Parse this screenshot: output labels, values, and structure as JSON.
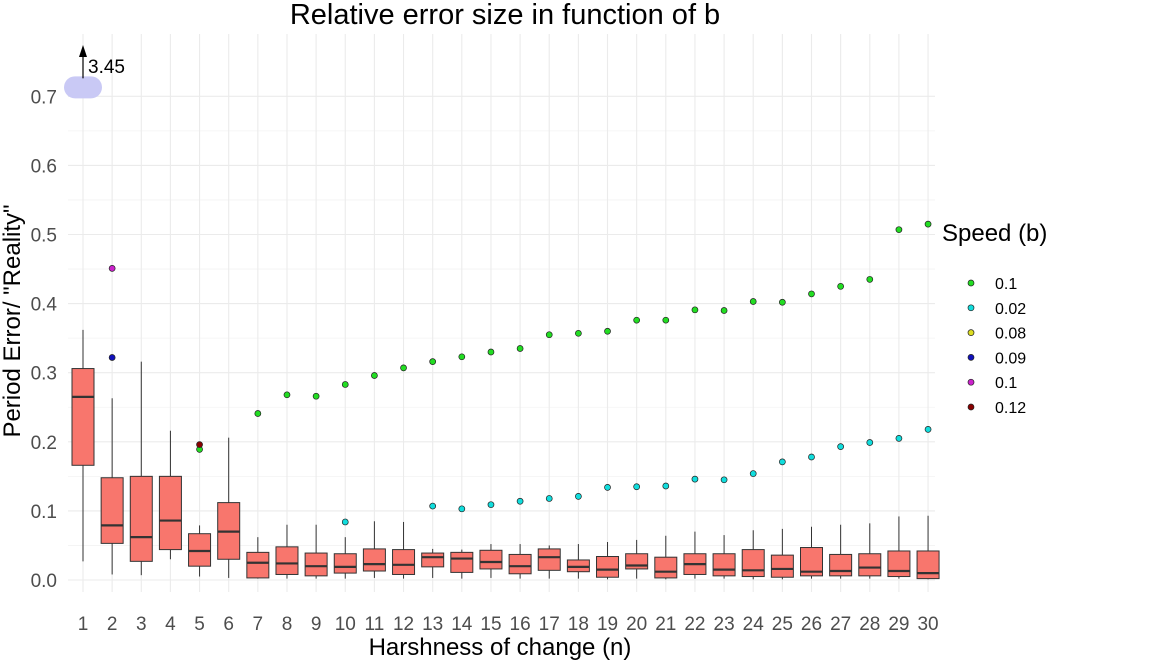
{
  "chart_data": {
    "type": "box",
    "title": "Relative error size in function of b",
    "xlabel": "Harshness of change (n)",
    "ylabel": "Period Error/ \"Reality\"",
    "categories": [
      "1",
      "2",
      "3",
      "4",
      "5",
      "6",
      "7",
      "8",
      "9",
      "10",
      "11",
      "12",
      "13",
      "14",
      "15",
      "16",
      "17",
      "18",
      "19",
      "20",
      "21",
      "22",
      "23",
      "24",
      "25",
      "26",
      "27",
      "28",
      "29",
      "30"
    ],
    "ylim": [
      -0.02,
      0.78
    ],
    "yticks": [
      0.0,
      0.1,
      0.2,
      0.3,
      0.4,
      0.5,
      0.6,
      0.7
    ],
    "ytick_labels": [
      "0.0",
      "0.1",
      "0.2",
      "0.3",
      "0.4",
      "0.5",
      "0.6",
      "0.7"
    ],
    "grid": true,
    "legend_position": "right",
    "legend_title": "Speed (b)",
    "box_color": "#F8766D",
    "boxes": [
      {
        "n": 1,
        "whisker_low": 0.027,
        "q1": 0.166,
        "median": 0.265,
        "q3": 0.306,
        "whisker_high": 0.362
      },
      {
        "n": 2,
        "whisker_low": 0.008,
        "q1": 0.053,
        "median": 0.079,
        "q3": 0.148,
        "whisker_high": 0.263
      },
      {
        "n": 3,
        "whisker_low": 0.007,
        "q1": 0.027,
        "median": 0.062,
        "q3": 0.15,
        "whisker_high": 0.316
      },
      {
        "n": 4,
        "whisker_low": 0.03,
        "q1": 0.044,
        "median": 0.086,
        "q3": 0.15,
        "whisker_high": 0.216
      },
      {
        "n": 5,
        "whisker_low": 0.005,
        "q1": 0.02,
        "median": 0.042,
        "q3": 0.067,
        "whisker_high": 0.079
      },
      {
        "n": 6,
        "whisker_low": 0.003,
        "q1": 0.03,
        "median": 0.07,
        "q3": 0.112,
        "whisker_high": 0.206
      },
      {
        "n": 7,
        "whisker_low": 0.002,
        "q1": 0.003,
        "median": 0.025,
        "q3": 0.04,
        "whisker_high": 0.062
      },
      {
        "n": 8,
        "whisker_low": 0.002,
        "q1": 0.008,
        "median": 0.024,
        "q3": 0.048,
        "whisker_high": 0.08
      },
      {
        "n": 9,
        "whisker_low": 0.002,
        "q1": 0.006,
        "median": 0.02,
        "q3": 0.039,
        "whisker_high": 0.08
      },
      {
        "n": 10,
        "whisker_low": 0.002,
        "q1": 0.01,
        "median": 0.019,
        "q3": 0.038,
        "whisker_high": 0.062
      },
      {
        "n": 11,
        "whisker_low": 0.003,
        "q1": 0.013,
        "median": 0.023,
        "q3": 0.045,
        "whisker_high": 0.085
      },
      {
        "n": 12,
        "whisker_low": 0.002,
        "q1": 0.008,
        "median": 0.022,
        "q3": 0.044,
        "whisker_high": 0.084
      },
      {
        "n": 13,
        "whisker_low": 0.003,
        "q1": 0.019,
        "median": 0.033,
        "q3": 0.039,
        "whisker_high": 0.045
      },
      {
        "n": 14,
        "whisker_low": 0.002,
        "q1": 0.011,
        "median": 0.031,
        "q3": 0.04,
        "whisker_high": 0.044
      },
      {
        "n": 15,
        "whisker_low": 0.003,
        "q1": 0.016,
        "median": 0.026,
        "q3": 0.043,
        "whisker_high": 0.052
      },
      {
        "n": 16,
        "whisker_low": 0.002,
        "q1": 0.009,
        "median": 0.02,
        "q3": 0.037,
        "whisker_high": 0.052
      },
      {
        "n": 17,
        "whisker_low": 0.002,
        "q1": 0.014,
        "median": 0.033,
        "q3": 0.045,
        "whisker_high": 0.05
      },
      {
        "n": 18,
        "whisker_low": 0.002,
        "q1": 0.012,
        "median": 0.019,
        "q3": 0.029,
        "whisker_high": 0.052
      },
      {
        "n": 19,
        "whisker_low": 0.001,
        "q1": 0.004,
        "median": 0.015,
        "q3": 0.034,
        "whisker_high": 0.055
      },
      {
        "n": 20,
        "whisker_low": 0.002,
        "q1": 0.016,
        "median": 0.021,
        "q3": 0.038,
        "whisker_high": 0.058
      },
      {
        "n": 21,
        "whisker_low": 0.001,
        "q1": 0.003,
        "median": 0.012,
        "q3": 0.033,
        "whisker_high": 0.064
      },
      {
        "n": 22,
        "whisker_low": 0.002,
        "q1": 0.008,
        "median": 0.023,
        "q3": 0.038,
        "whisker_high": 0.07
      },
      {
        "n": 23,
        "whisker_low": 0.002,
        "q1": 0.006,
        "median": 0.015,
        "q3": 0.038,
        "whisker_high": 0.065
      },
      {
        "n": 24,
        "whisker_low": 0.001,
        "q1": 0.005,
        "median": 0.014,
        "q3": 0.044,
        "whisker_high": 0.072
      },
      {
        "n": 25,
        "whisker_low": 0.001,
        "q1": 0.004,
        "median": 0.016,
        "q3": 0.036,
        "whisker_high": 0.074
      },
      {
        "n": 26,
        "whisker_low": 0.002,
        "q1": 0.006,
        "median": 0.012,
        "q3": 0.047,
        "whisker_high": 0.077
      },
      {
        "n": 27,
        "whisker_low": 0.002,
        "q1": 0.006,
        "median": 0.013,
        "q3": 0.037,
        "whisker_high": 0.08
      },
      {
        "n": 28,
        "whisker_low": 0.002,
        "q1": 0.006,
        "median": 0.018,
        "q3": 0.038,
        "whisker_high": 0.082
      },
      {
        "n": 29,
        "whisker_low": 0.002,
        "q1": 0.005,
        "median": 0.013,
        "q3": 0.042,
        "whisker_high": 0.092
      },
      {
        "n": 30,
        "whisker_low": 0.001,
        "q1": 0.002,
        "median": 0.01,
        "q3": 0.042,
        "whisker_high": 0.093
      }
    ],
    "series": [
      {
        "name": "0.1",
        "color": "#22dd22",
        "points": [
          [
            5,
            0.189
          ],
          [
            7,
            0.241
          ],
          [
            8,
            0.268
          ],
          [
            9,
            0.266
          ],
          [
            10,
            0.283
          ],
          [
            11,
            0.296
          ],
          [
            12,
            0.307
          ],
          [
            13,
            0.316
          ],
          [
            14,
            0.323
          ],
          [
            15,
            0.33
          ],
          [
            16,
            0.335
          ],
          [
            17,
            0.355
          ],
          [
            18,
            0.357
          ],
          [
            19,
            0.36
          ],
          [
            20,
            0.376
          ],
          [
            21,
            0.376
          ],
          [
            22,
            0.391
          ],
          [
            23,
            0.39
          ],
          [
            24,
            0.403
          ],
          [
            25,
            0.402
          ],
          [
            26,
            0.414
          ],
          [
            27,
            0.425
          ],
          [
            28,
            0.435
          ],
          [
            29,
            0.507
          ],
          [
            30,
            0.515
          ]
        ]
      },
      {
        "name": "0.02",
        "color": "#11dddd",
        "points": [
          [
            10,
            0.084
          ],
          [
            13,
            0.107
          ],
          [
            14,
            0.103
          ],
          [
            15,
            0.109
          ],
          [
            16,
            0.114
          ],
          [
            17,
            0.118
          ],
          [
            18,
            0.121
          ],
          [
            19,
            0.134
          ],
          [
            20,
            0.135
          ],
          [
            21,
            0.136
          ],
          [
            22,
            0.146
          ],
          [
            23,
            0.145
          ],
          [
            24,
            0.154
          ],
          [
            25,
            0.171
          ],
          [
            26,
            0.178
          ],
          [
            27,
            0.193
          ],
          [
            28,
            0.199
          ],
          [
            29,
            0.205
          ],
          [
            30,
            0.218
          ]
        ]
      },
      {
        "name": "0.08",
        "color": "#dddd22",
        "points": [
          [
            1,
            0.713
          ]
        ]
      },
      {
        "name": "0.09",
        "color": "#1111bb",
        "points": [
          [
            2,
            0.322
          ]
        ]
      },
      {
        "name": "0.1",
        "color": "#cc22cc",
        "points": [
          [
            2,
            0.451
          ]
        ]
      },
      {
        "name": "0.12",
        "color": "#880000",
        "points": [
          [
            5,
            0.196
          ]
        ]
      }
    ],
    "annotations": [
      {
        "text": "3.45",
        "x": 1,
        "y": 0.713,
        "arrow": "up",
        "highlight_color": "#c9c9f5"
      }
    ]
  }
}
